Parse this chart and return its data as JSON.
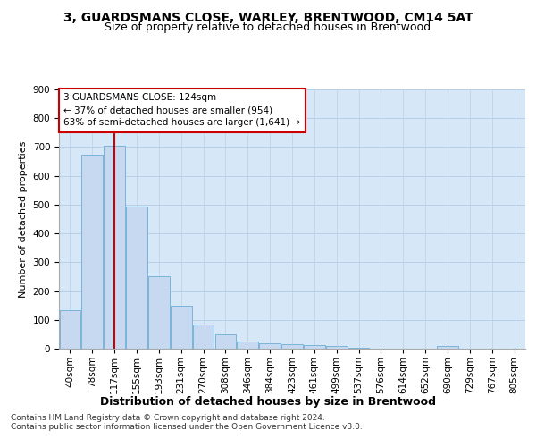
{
  "title1": "3, GUARDSMANS CLOSE, WARLEY, BRENTWOOD, CM14 5AT",
  "title2": "Size of property relative to detached houses in Brentwood",
  "xlabel": "Distribution of detached houses by size in Brentwood",
  "ylabel": "Number of detached properties",
  "bar_labels": [
    "40sqm",
    "78sqm",
    "117sqm",
    "155sqm",
    "193sqm",
    "231sqm",
    "270sqm",
    "308sqm",
    "346sqm",
    "384sqm",
    "423sqm",
    "461sqm",
    "499sqm",
    "537sqm",
    "576sqm",
    "614sqm",
    "652sqm",
    "690sqm",
    "729sqm",
    "767sqm",
    "805sqm"
  ],
  "bar_values": [
    135,
    675,
    706,
    493,
    250,
    148,
    85,
    51,
    26,
    20,
    15,
    12,
    8,
    2,
    0,
    0,
    0,
    10,
    0,
    0,
    0
  ],
  "bar_color": "#c6d9f0",
  "bar_edgecolor": "#6baed6",
  "annotation_box_text": "3 GUARDSMANS CLOSE: 124sqm\n← 37% of detached houses are smaller (954)\n63% of semi-detached houses are larger (1,641) →",
  "annotation_box_color": "#ffffff",
  "annotation_box_edgecolor": "#cc0000",
  "vline_color": "#cc0000",
  "ylim": [
    0,
    900
  ],
  "yticks": [
    0,
    100,
    200,
    300,
    400,
    500,
    600,
    700,
    800,
    900
  ],
  "grid_color": "#b8cfe8",
  "bg_color": "#d6e8f7",
  "footer_text": "Contains HM Land Registry data © Crown copyright and database right 2024.\nContains public sector information licensed under the Open Government Licence v3.0.",
  "title1_fontsize": 10,
  "title2_fontsize": 9,
  "xlabel_fontsize": 9,
  "ylabel_fontsize": 8,
  "tick_fontsize": 7.5,
  "footer_fontsize": 6.5,
  "annot_fontsize": 7.5
}
